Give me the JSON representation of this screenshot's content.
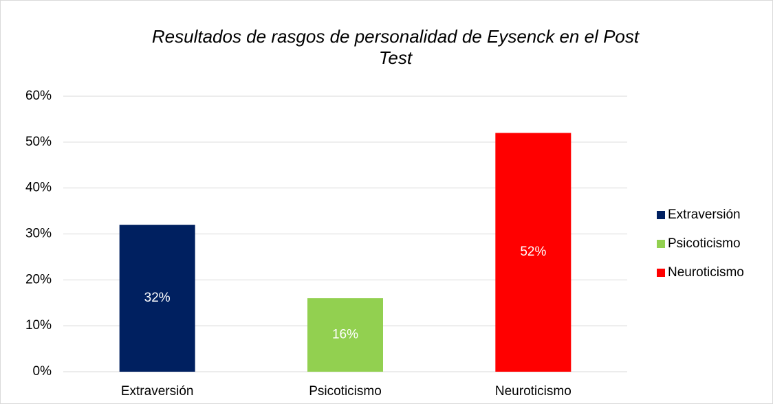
{
  "chart_data": {
    "type": "bar",
    "title": "Resultados de rasgos de personalidad de Eysenck en el Post Test",
    "categories": [
      "Extraversión",
      "Psicoticismo",
      "Neuroticismo"
    ],
    "values": [
      32,
      16,
      52
    ],
    "value_labels": [
      "32%",
      "16%",
      "52%"
    ],
    "colors": [
      "#002060",
      "#92d050",
      "#ff0000"
    ],
    "ylim": [
      0,
      60
    ],
    "yticks": [
      {
        "value": 0,
        "label": "0%"
      },
      {
        "value": 10,
        "label": "10%"
      },
      {
        "value": 20,
        "label": "20%"
      },
      {
        "value": 30,
        "label": "30%"
      },
      {
        "value": 40,
        "label": "40%"
      },
      {
        "value": 50,
        "label": "50%"
      },
      {
        "value": 60,
        "label": "60%"
      }
    ],
    "grid": true,
    "legend": "right"
  }
}
